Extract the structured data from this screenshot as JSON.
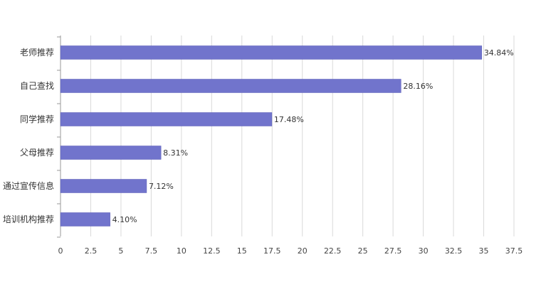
{
  "chart_data": {
    "type": "bar",
    "orientation": "horizontal",
    "categories": [
      "老师推荐",
      "自己查找",
      "同学推荐",
      "父母推荐",
      "通过宣传信息",
      "培训机构推荐"
    ],
    "values": [
      34.84,
      28.16,
      17.48,
      8.31,
      7.12,
      4.1
    ],
    "value_labels": [
      "34.84%",
      "28.16%",
      "17.48%",
      "8.31%",
      "7.12%",
      "4.10%"
    ],
    "xlim": [
      0,
      37.5
    ],
    "xticks": [
      0,
      2.5,
      5,
      7.5,
      10,
      12.5,
      15,
      17.5,
      20,
      22.5,
      25,
      27.5,
      30,
      32.5,
      35,
      37.5
    ],
    "xtick_labels": [
      "0",
      "2.5",
      "5",
      "7.5",
      "10",
      "12.5",
      "15",
      "17.5",
      "20",
      "22.5",
      "25",
      "27.5",
      "30",
      "32.5",
      "35",
      "37.5"
    ],
    "grid": true,
    "legend": "none",
    "bar_color": "#7174cc",
    "title": "",
    "xlabel": "",
    "ylabel": ""
  }
}
